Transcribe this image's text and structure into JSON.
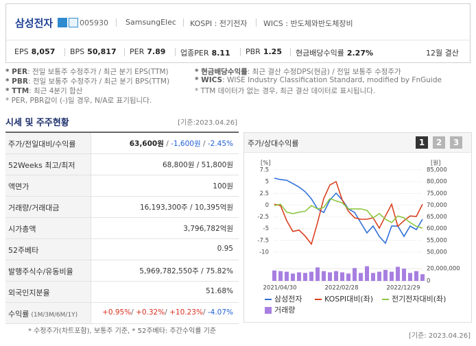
{
  "header": {
    "name": "삼성전자",
    "code": "005930",
    "eng_name": "SamsungElec",
    "market": "KOSPI : 전기전자",
    "wics": "WICS : 반도체와반도체장비",
    "metrics": [
      {
        "label": "EPS",
        "value": "8,057"
      },
      {
        "label": "BPS",
        "value": "50,817"
      },
      {
        "label": "PER",
        "value": "7.89"
      },
      {
        "label": "업종PER",
        "value": "8.11"
      },
      {
        "label": "PBR",
        "value": "1.25"
      },
      {
        "label": "현금배당수익률",
        "value": "2.27%"
      }
    ],
    "fiscal": "12월 결산"
  },
  "notes": {
    "left": [
      {
        "term": "* PER",
        "text": ": 전일 보통주 수정주가 / 최근 분기 EPS(TTM)"
      },
      {
        "term": "* PBR",
        "text": ": 전일 보통주 수정주가 / 최근 분기 BPS(TTM)"
      },
      {
        "term": "* TTM",
        "text": ": 최근 4분기 합산"
      },
      {
        "text": "* PER, PBR값이 (-)일 경우, N/A로 표기됩니다."
      }
    ],
    "right": [
      {
        "term": "* 현금배당수익률",
        "text": ": 최근 결산 수정DPS(현금) / 전일 보통주 수정주가"
      },
      {
        "term": "* WICS",
        "text": ": WISE Industry Classification Standard, modified by FnGuide"
      },
      {
        "text": "* TTM 데이터가 없는 경우, 최근 결산 데이터로 표시됩니다."
      }
    ]
  },
  "section": {
    "title": "시세 및 주주현황",
    "as_of": "[기준:2023.04.26]"
  },
  "table": {
    "rows": [
      {
        "label": "주가/전일대비/수익률",
        "value": [
          {
            "text": "63,600원",
            "color": "#222",
            "bold": true
          },
          {
            "text": " / ",
            "color": "#666"
          },
          {
            "text": "-1,600원",
            "color": "#1f5fd6"
          },
          {
            "text": " / ",
            "color": "#666"
          },
          {
            "text": "-2.45%",
            "color": "#1f5fd6"
          }
        ]
      },
      {
        "label": "52Weeks 최고/최저",
        "value": "68,800원 / 51,800원"
      },
      {
        "label": "액면가",
        "value": "100원"
      },
      {
        "label": "거래량/거래대금",
        "value": "16,193,300주 / 10,395억원"
      },
      {
        "label": "시가총액",
        "value": "3,796,782억원"
      },
      {
        "label": "52주베타",
        "value": "0.95"
      },
      {
        "label": "발행주식수/유동비율",
        "value": "5,969,782,550주 / 75.82%"
      },
      {
        "label": "외국인지분율",
        "value": "51.68%"
      },
      {
        "label": "수익률",
        "sublabel": "(1M/3M/6M/1Y)",
        "value": [
          {
            "text": "+0.95%",
            "color": "#d9301f"
          },
          {
            "text": "/ ",
            "color": "#666"
          },
          {
            "text": "+0.32%",
            "color": "#d9301f"
          },
          {
            "text": "/ ",
            "color": "#666"
          },
          {
            "text": "+10.23%",
            "color": "#d9301f"
          },
          {
            "text": "/ ",
            "color": "#666"
          },
          {
            "text": "-4.07%",
            "color": "#1f5fd6"
          }
        ]
      }
    ],
    "footnote": "* 수정주가(차트포함), 보통주 기준, * 52주베타: 주간수익률 기준"
  },
  "panel": {
    "title": "주가/상대수익률",
    "buttons": [
      "1",
      "2",
      "3"
    ],
    "active_button": 0,
    "as_of": "[기준: 2023.04.26]"
  },
  "chart_data": {
    "type": "line",
    "legend": "bottom",
    "grid": true,
    "x": [
      "2021/04/30",
      null,
      null,
      null,
      null,
      null,
      null,
      null,
      null,
      null,
      "2022/02/28",
      null,
      null,
      null,
      null,
      null,
      null,
      null,
      null,
      null,
      "2022/12/29",
      null,
      null,
      null,
      null
    ],
    "y_unit": "[%]",
    "y2_unit": "[원]",
    "ylim": [
      -10,
      7.5
    ],
    "yticks": [
      7.5,
      5,
      2.5,
      0,
      -2.5,
      -5,
      -7.5,
      -10
    ],
    "y2lim": [
      50000,
      85000
    ],
    "y2ticks": [
      {
        "value": 85000,
        "label": "85,000"
      },
      {
        "value": 80000,
        "label": "80,000"
      },
      {
        "value": 75000,
        "label": "75,000"
      },
      {
        "value": 70000,
        "label": "70,000"
      },
      {
        "value": 65000,
        "label": "65,000"
      },
      {
        "value": 60000,
        "label": "60,000"
      },
      {
        "value": 55000,
        "label": "55,000"
      },
      {
        "value": 50000,
        "label": "50,000"
      }
    ],
    "y3lim": [
      0,
      38000000
    ],
    "y3ticks": [
      {
        "value": 20000000,
        "label": "20,000,000"
      },
      0
    ],
    "series": [
      {
        "name": "삼성전자",
        "color": "#2e6fd8",
        "axis": "y2",
        "values": [
          81500,
          80900,
          80600,
          79200,
          77700,
          75700,
          72700,
          68400,
          66900,
          72200,
          75100,
          72200,
          68400,
          66900,
          62500,
          58200,
          61100,
          56700,
          53800,
          61100,
          61100,
          56700,
          61100,
          59600,
          64000
        ]
      },
      {
        "name": "KOSPI대비(좌)",
        "color": "#d9401f",
        "values": [
          0.2,
          -0.1,
          -3.3,
          -5.6,
          -5.3,
          -6.6,
          -8.3,
          -3.7,
          1.4,
          4.3,
          5.0,
          1.1,
          -1.3,
          -2.7,
          -3.0,
          -3.0,
          -2.7,
          -4.9,
          -2.3,
          0.2,
          -4.5,
          -3.3,
          -2.3,
          -2.4,
          0.2
        ]
      },
      {
        "name": "전기전자대비(좌)",
        "color": "#8cc63f",
        "values": [
          -0.1,
          0.2,
          -1.5,
          -1.8,
          -1.5,
          -1.3,
          -0.1,
          -0.8,
          -0.5,
          1.4,
          0.9,
          0.5,
          -0.8,
          -0.8,
          -0.8,
          -1.1,
          -2.7,
          -1.8,
          -3.0,
          -3.7,
          -2.3,
          -2.7,
          -3.7,
          -4.5,
          -4.9
        ]
      },
      {
        "name": "거래량",
        "type": "bar",
        "color": "#a77fe0",
        "axis": "y3",
        "values": [
          17000000,
          16000000,
          15000000,
          12000000,
          14000000,
          13000000,
          15000000,
          22000000,
          16000000,
          14000000,
          16000000,
          14000000,
          12000000,
          21000000,
          13000000,
          24000000,
          13000000,
          15000000,
          18000000,
          15000000,
          23000000,
          20000000,
          13000000,
          16000000,
          11000000
        ]
      }
    ]
  }
}
